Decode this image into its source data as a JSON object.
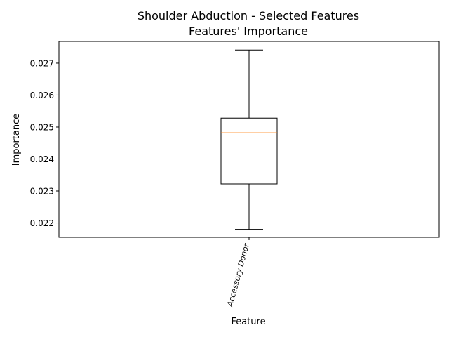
{
  "chart_data": {
    "type": "box",
    "title": "Shoulder Abduction - Selected Features",
    "subtitle": "Features' Importance",
    "xlabel": "Feature",
    "ylabel": "Importance",
    "categories": [
      "Accessory Donor"
    ],
    "boxes": [
      {
        "category": "Accessory Donor",
        "whisker_low": 0.0218,
        "q1": 0.02322,
        "median": 0.02482,
        "q3": 0.02528,
        "whisker_high": 0.02741
      }
    ],
    "ylim": [
      0.02155,
      0.02768
    ],
    "yticks": [
      0.022,
      0.023,
      0.024,
      0.025,
      0.026,
      0.027
    ],
    "ytick_labels": [
      "0.022",
      "0.023",
      "0.024",
      "0.025",
      "0.026",
      "0.027"
    ],
    "grid": false,
    "colors": {
      "box": "#000000",
      "median": "#ff7f0e"
    }
  }
}
